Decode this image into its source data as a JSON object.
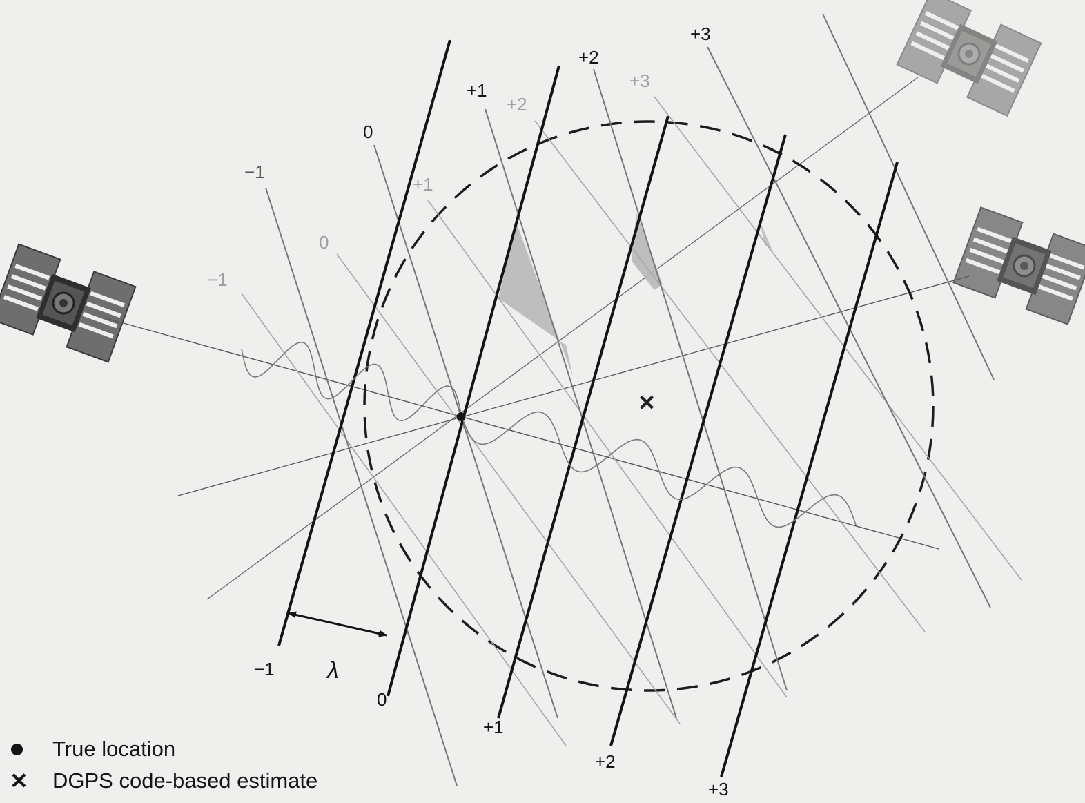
{
  "diagram": {
    "wavelength_symbol": "λ",
    "true_location_marker": "●",
    "estimate_marker": "×",
    "bold_labels": [
      "−1",
      "0",
      "+1",
      "+2",
      "+3"
    ],
    "bold_labels_top": [
      "0",
      "+1",
      "+2",
      "+3"
    ],
    "medium_labels": [
      "−1",
      "0",
      "+1",
      "+2",
      "+3"
    ],
    "light_labels": [
      "−1",
      "0",
      "+1",
      "+2",
      "+3"
    ]
  },
  "legend": {
    "items": [
      {
        "icon": "filled-circle",
        "label": "True location"
      },
      {
        "icon": "x-mark",
        "label": "DGPS code-based estimate"
      }
    ]
  },
  "colors": {
    "background": "#efefed",
    "ink": "#141414",
    "medium_line": "#7a7a7a",
    "light_line": "#a8a8a8",
    "shaded_region": "#b9b9b9",
    "satellite_panel": "#6e6e6e"
  }
}
